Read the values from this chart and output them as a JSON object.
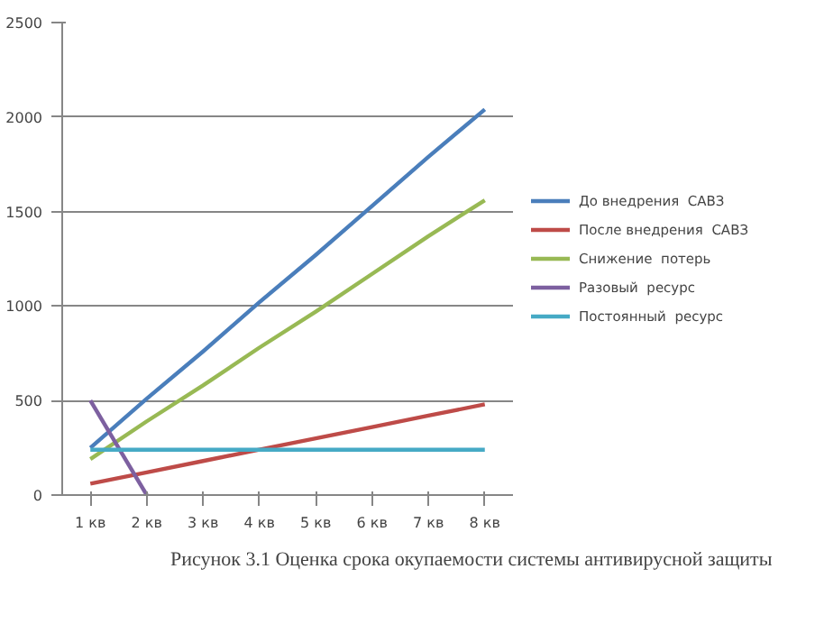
{
  "chart_data": {
    "type": "line",
    "title": "Рисунок 3.1 Оценка срока окупаемости системы антивирусной защиты",
    "categories": [
      "1 кв",
      "2 кв",
      "3 кв",
      "4 кв",
      "5 кв",
      "6 кв",
      "7 кв",
      "8 кв"
    ],
    "series": [
      {
        "name": "До внедрения  САВЗ",
        "color": "#4a7ebb",
        "values": [
          250,
          510,
          760,
          1020,
          1270,
          1530,
          1790,
          2040
        ]
      },
      {
        "name": "После внедрения  САВЗ",
        "color": "#be4b48",
        "values": [
          60,
          120,
          180,
          240,
          300,
          360,
          420,
          480
        ]
      },
      {
        "name": "Снижение  потерь",
        "color": "#98b954",
        "values": [
          190,
          390,
          580,
          780,
          970,
          1170,
          1370,
          1560
        ]
      },
      {
        "name": "Разовый  ресурс",
        "color": "#7d60a0",
        "values": [
          500,
          0,
          null,
          null,
          null,
          null,
          null,
          null
        ]
      },
      {
        "name": "Постоянный  ресурс",
        "color": "#46aac5",
        "values": [
          240,
          240,
          240,
          240,
          240,
          240,
          240,
          240
        ]
      }
    ],
    "ylim": [
      0,
      2500
    ],
    "yticks": [
      0,
      500,
      1000,
      1500,
      2000,
      2500
    ],
    "grid": "y",
    "legend": "right",
    "marker": "none",
    "line_style": "solid"
  }
}
